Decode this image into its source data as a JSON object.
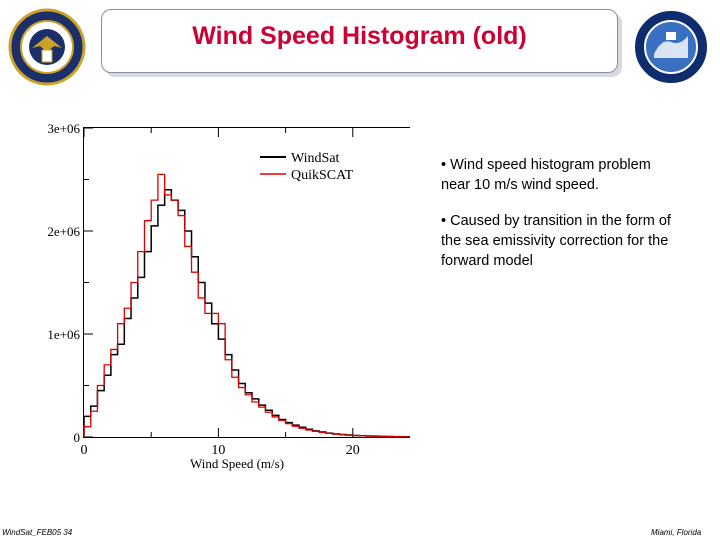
{
  "slide": {
    "title": "Wind Speed Histogram (old)",
    "footer_left": "WindSat_FEB05 34",
    "footer_right": "Miami, Florida",
    "left_logo_icon": "navy-seal-logo",
    "right_logo_icon": "windsat-mission-logo"
  },
  "bullets": [
    "• Wind speed histogram problem near 10 m/s wind speed.",
    "• Caused by transition in the form of the sea emissivity correction for the forward model"
  ],
  "chart_data": {
    "type": "line",
    "step": true,
    "xlabel": "Wind Speed (m/s)",
    "ylabel": "",
    "xlim": [
      0,
      25
    ],
    "ylim": [
      0,
      3000000
    ],
    "x_ticks": [
      0,
      10,
      20
    ],
    "x_tick_labels": [
      "0",
      "10",
      "20"
    ],
    "y_ticks": [
      0,
      1000000,
      2000000,
      3000000
    ],
    "y_tick_labels": [
      "0",
      "1e+06",
      "2e+06",
      "3e+06"
    ],
    "grid": false,
    "legend": "top-right",
    "x": [
      0,
      0.5,
      1,
      1.5,
      2,
      2.5,
      3,
      3.5,
      4,
      4.5,
      5,
      5.5,
      6,
      6.5,
      7,
      7.5,
      8,
      8.5,
      9,
      9.5,
      10,
      10.5,
      11,
      11.5,
      12,
      12.5,
      13,
      13.5,
      14,
      14.5,
      15,
      15.5,
      16,
      16.5,
      17,
      17.5,
      18,
      18.5,
      19,
      19.5,
      20,
      20.5,
      21,
      21.5,
      22,
      22.5,
      23,
      23.5,
      24,
      24.5
    ],
    "series": [
      {
        "name": "WindSat",
        "color": "#000000",
        "values": [
          200000,
          300000,
          450000,
          600000,
          800000,
          900000,
          1150000,
          1350000,
          1550000,
          1800000,
          2050000,
          2250000,
          2400000,
          2300000,
          2200000,
          2000000,
          1750000,
          1500000,
          1300000,
          1100000,
          950000,
          800000,
          650000,
          520000,
          430000,
          370000,
          310000,
          260000,
          210000,
          170000,
          140000,
          115000,
          95000,
          75000,
          60000,
          48000,
          38000,
          30000,
          24000,
          19000,
          15000,
          12000,
          10000,
          8000,
          6000,
          5000,
          4000,
          3000,
          2000,
          1000
        ]
      },
      {
        "name": "QuikSCAT",
        "color": "#dd0000",
        "values": [
          100000,
          250000,
          500000,
          700000,
          850000,
          1100000,
          1250000,
          1500000,
          1800000,
          2100000,
          2300000,
          2550000,
          2350000,
          2300000,
          2150000,
          1850000,
          1600000,
          1350000,
          1200000,
          1200000,
          1100000,
          750000,
          580000,
          480000,
          410000,
          340000,
          290000,
          240000,
          195000,
          160000,
          130000,
          105000,
          85000,
          68000,
          55000,
          44000,
          35000,
          28000,
          22000,
          17000,
          14000,
          11000,
          9000,
          7000,
          5500,
          4500,
          3500,
          2500,
          1500,
          800
        ]
      }
    ]
  }
}
